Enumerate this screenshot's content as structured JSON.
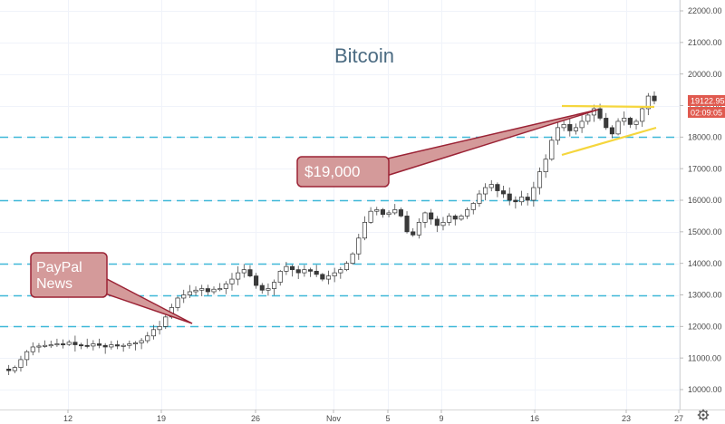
{
  "chart_data": {
    "type": "candlestick",
    "title": "Bitcoin",
    "ylim": [
      9700,
      22500
    ],
    "y_ticks": [
      {
        "value": 10000,
        "label": "10000.00"
      },
      {
        "value": 11000,
        "label": "11000.00"
      },
      {
        "value": 12000,
        "label": "12000.00"
      },
      {
        "value": 13000,
        "label": "13000.00"
      },
      {
        "value": 14000,
        "label": "14000.00"
      },
      {
        "value": 15000,
        "label": "15000.00"
      },
      {
        "value": 16000,
        "label": "16000.00"
      },
      {
        "value": 17000,
        "label": "17000.00"
      },
      {
        "value": 18000,
        "label": "18000.00"
      },
      {
        "value": 19000,
        "label": "19000.00"
      },
      {
        "value": 20000,
        "label": "20000.00"
      },
      {
        "value": 21000,
        "label": "21000.00"
      },
      {
        "value": 22000,
        "label": "22000.00"
      }
    ],
    "x_ticks": [
      "12",
      "19",
      "26",
      "Nov",
      "5",
      "9",
      "16",
      "23",
      "27"
    ],
    "horizontal_levels": [
      12000,
      13000,
      14000,
      16000,
      18000
    ],
    "last_price": "19122.95",
    "countdown": "02:09:05",
    "annotations": [
      {
        "text_lines": [
          "PayPal",
          "News"
        ]
      },
      {
        "text_lines": [
          "$19,000"
        ]
      }
    ],
    "price_path": [
      10650,
      10600,
      10700,
      10950,
      11200,
      11350,
      11380,
      11400,
      11420,
      11450,
      11430,
      11500,
      11420,
      11400,
      11380,
      11450,
      11400,
      11350,
      11420,
      11380,
      11400,
      11450,
      11480,
      11550,
      11700,
      11900,
      12000,
      12300,
      12600,
      12900,
      13000,
      13100,
      13150,
      13200,
      13100,
      13180,
      13200,
      13350,
      13500,
      13700,
      13800,
      13600,
      13300,
      13150,
      13200,
      13400,
      13750,
      13900,
      13800,
      13700,
      13800,
      13750,
      13650,
      13500,
      13600,
      13700,
      13800,
      14000,
      14300,
      14800,
      15300,
      15650,
      15700,
      15550,
      15600,
      15700,
      15500,
      15000,
      14900,
      15300,
      15600,
      15400,
      15200,
      15300,
      15500,
      15400,
      15500,
      15700,
      15900,
      16200,
      16400,
      16500,
      16300,
      16200,
      16000,
      15950,
      16100,
      16000,
      16400,
      16900,
      17300,
      17900,
      18300,
      18400,
      18200,
      18300,
      18500,
      18700,
      18900,
      18600,
      18300,
      18100,
      18500,
      18600,
      18400,
      18500,
      18900,
      19300,
      19150
    ]
  }
}
